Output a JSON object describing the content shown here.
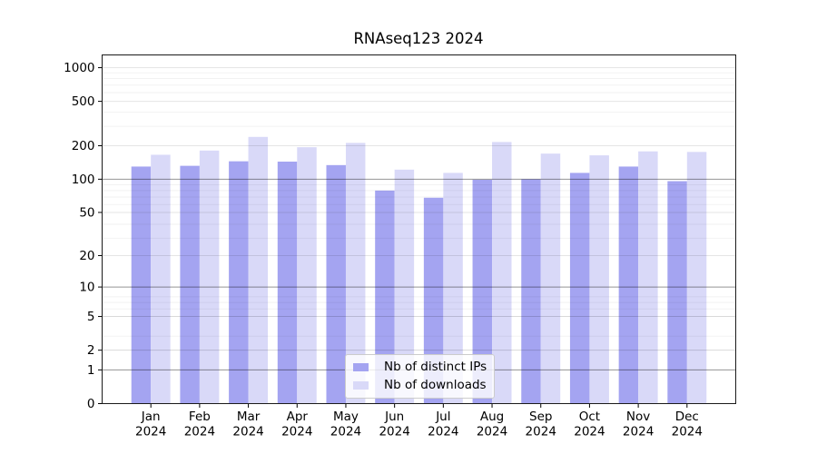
{
  "chart_data": {
    "type": "bar",
    "title": "RNAseq123 2024",
    "categories": [
      "Jan 2024",
      "Feb 2024",
      "Mar 2024",
      "Apr 2024",
      "May 2024",
      "Jun 2024",
      "Jul 2024",
      "Aug 2024",
      "Sep 2024",
      "Oct 2024",
      "Nov 2024",
      "Dec 2024"
    ],
    "series": [
      {
        "name": "Nb of distinct IPs",
        "color": "#a4a4f1",
        "values": [
          130,
          132,
          145,
          144,
          134,
          79,
          68,
          99,
          100,
          114,
          130,
          96
        ]
      },
      {
        "name": "Nb of downloads",
        "color": "#d9d9f8",
        "values": [
          166,
          181,
          240,
          194,
          212,
          122,
          114,
          216,
          170,
          164,
          178,
          176
        ]
      }
    ],
    "xlabel": "",
    "ylabel": "",
    "yscale": "log1p",
    "yticks": [
      0,
      1,
      2,
      5,
      10,
      20,
      50,
      100,
      200,
      500,
      1000
    ],
    "ylim": [
      0,
      1300
    ],
    "grid": true,
    "legend_position": "lower center"
  }
}
